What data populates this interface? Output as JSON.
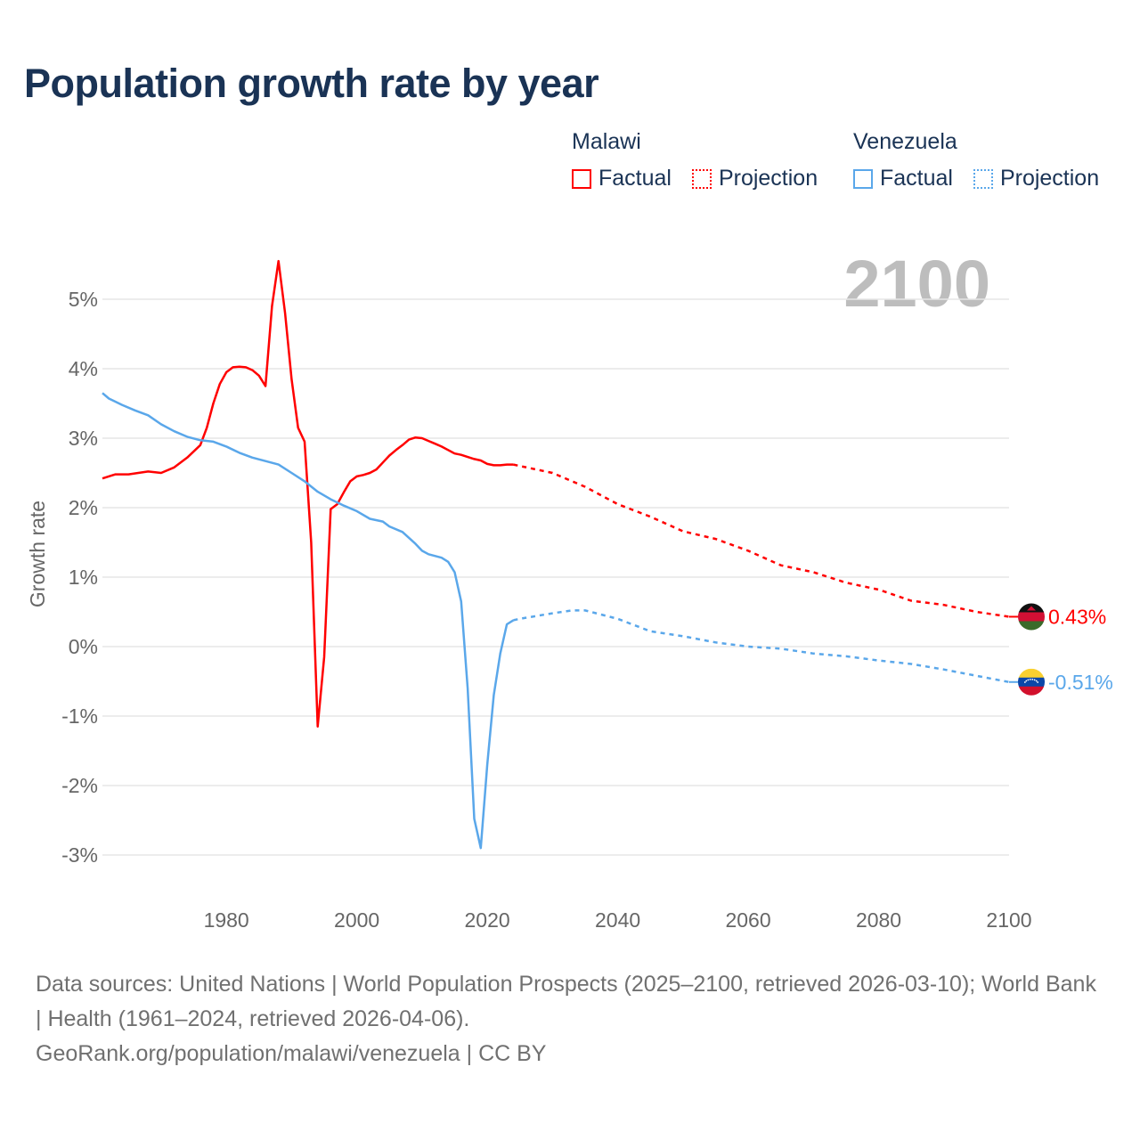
{
  "title": "Population growth rate by year",
  "watermark_year": "2100",
  "legend": {
    "groups": [
      {
        "name": "Malawi",
        "color": "#ff0000",
        "factual": "Factual",
        "projection": "Projection"
      },
      {
        "name": "Venezuela",
        "color": "#5aa7ea",
        "factual": "Factual",
        "projection": "Projection"
      }
    ]
  },
  "footer": {
    "sources": "Data sources: United Nations | World Population Prospects (2025–2100, retrieved 2026-03-10); World Bank | Health (1961–2024, retrieved 2026-04-06).",
    "link": "GeoRank.org/population/malawi/venezuela | CC BY"
  },
  "chart_data": {
    "type": "line",
    "title": "Population growth rate by year",
    "xlabel": "",
    "ylabel": "Growth rate",
    "xlim": [
      1961,
      2100
    ],
    "ylim": [
      -3.6,
      5.8
    ],
    "x_ticks": [
      1980,
      2000,
      2020,
      2040,
      2060,
      2080,
      2100
    ],
    "x_tick_labels": [
      "1980",
      "2000",
      "2020",
      "2040",
      "2060",
      "2080",
      "2100"
    ],
    "y_ticks": [
      5,
      4,
      3,
      2,
      1,
      0,
      -1,
      -2,
      -3
    ],
    "y_tick_labels": [
      "5%",
      "4%",
      "3%",
      "2%",
      "1%",
      "0%",
      "-1%",
      "-2%",
      "-3%"
    ],
    "grid": true,
    "legend_placement": "top-right",
    "series": [
      {
        "name": "Malawi",
        "color": "#ff0000",
        "end_label": "0.43%",
        "flag": "malawi",
        "factual": {
          "x": [
            1961,
            1963,
            1965,
            1968,
            1970,
            1972,
            1974,
            1976,
            1977,
            1978,
            1979,
            1980,
            1981,
            1982,
            1983,
            1984,
            1985,
            1986,
            1987,
            1988,
            1989,
            1990,
            1991,
            1992,
            1993,
            1994,
            1995,
            1996,
            1997,
            1998,
            1999,
            2000,
            2001,
            2002,
            2003,
            2004,
            2005,
            2006,
            2007,
            2008,
            2009,
            2010,
            2011,
            2012,
            2013,
            2014,
            2015,
            2016,
            2017,
            2018,
            2019,
            2020,
            2021,
            2022,
            2023,
            2024
          ],
          "y": [
            2.42,
            2.48,
            2.48,
            2.52,
            2.5,
            2.58,
            2.72,
            2.9,
            3.15,
            3.5,
            3.78,
            3.95,
            4.02,
            4.03,
            4.02,
            3.98,
            3.9,
            3.75,
            4.9,
            5.55,
            4.8,
            3.85,
            3.15,
            2.95,
            1.5,
            -1.15,
            -0.15,
            1.98,
            2.05,
            2.22,
            2.38,
            2.45,
            2.47,
            2.5,
            2.55,
            2.65,
            2.75,
            2.83,
            2.9,
            2.98,
            3.01,
            3.0,
            2.96,
            2.92,
            2.88,
            2.83,
            2.78,
            2.76,
            2.73,
            2.7,
            2.68,
            2.63,
            2.61,
            2.61,
            2.62,
            2.62
          ]
        },
        "projection": {
          "x": [
            2024,
            2025,
            2030,
            2035,
            2040,
            2045,
            2050,
            2055,
            2060,
            2065,
            2070,
            2075,
            2080,
            2085,
            2090,
            2095,
            2100
          ],
          "y": [
            2.62,
            2.6,
            2.5,
            2.3,
            2.05,
            1.87,
            1.66,
            1.55,
            1.38,
            1.17,
            1.07,
            0.92,
            0.82,
            0.66,
            0.6,
            0.5,
            0.43
          ]
        }
      },
      {
        "name": "Venezuela",
        "color": "#5aa7ea",
        "end_label": "-0.51%",
        "flag": "venezuela",
        "factual": {
          "x": [
            1961,
            1962,
            1964,
            1966,
            1968,
            1970,
            1972,
            1974,
            1976,
            1978,
            1980,
            1982,
            1984,
            1986,
            1988,
            1990,
            1992,
            1994,
            1996,
            1998,
            2000,
            2002,
            2004,
            2005,
            2007,
            2009,
            2010,
            2011,
            2013,
            2014,
            2015,
            2016,
            2017,
            2018,
            2019,
            2020,
            2021,
            2022,
            2023,
            2024
          ],
          "y": [
            3.65,
            3.57,
            3.48,
            3.4,
            3.33,
            3.2,
            3.1,
            3.02,
            2.97,
            2.95,
            2.88,
            2.79,
            2.72,
            2.67,
            2.62,
            2.5,
            2.38,
            2.23,
            2.12,
            2.03,
            1.95,
            1.84,
            1.8,
            1.73,
            1.65,
            1.48,
            1.38,
            1.33,
            1.28,
            1.22,
            1.07,
            0.65,
            -0.6,
            -2.48,
            -2.9,
            -1.7,
            -0.7,
            -0.1,
            0.32,
            0.38
          ]
        },
        "projection": {
          "x": [
            2024,
            2025,
            2030,
            2033,
            2035,
            2040,
            2045,
            2050,
            2055,
            2060,
            2065,
            2070,
            2075,
            2080,
            2085,
            2090,
            2095,
            2100
          ],
          "y": [
            0.38,
            0.4,
            0.48,
            0.52,
            0.52,
            0.4,
            0.22,
            0.15,
            0.06,
            0.0,
            -0.03,
            -0.1,
            -0.14,
            -0.2,
            -0.25,
            -0.33,
            -0.42,
            -0.51
          ]
        }
      }
    ]
  }
}
